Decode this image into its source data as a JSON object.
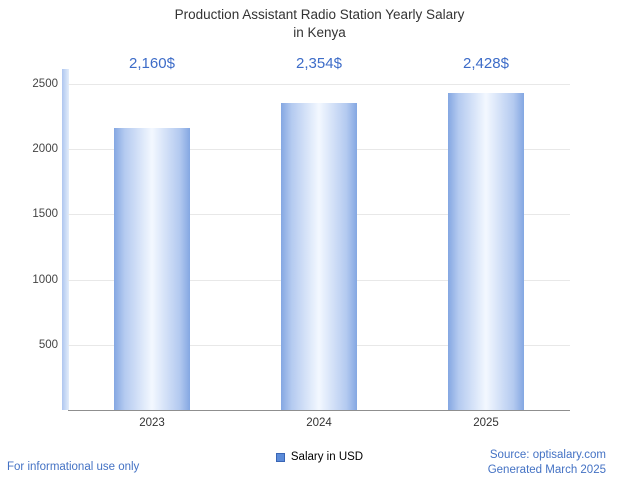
{
  "title": {
    "line1": "Production Assistant Radio Station Yearly Salary",
    "line2": "in Kenya"
  },
  "chart_data": {
    "type": "bar",
    "title": "Production Assistant Radio Station Yearly Salary in Kenya",
    "categories": [
      "2023",
      "2024",
      "2025"
    ],
    "values": [
      2160,
      2354,
      2428
    ],
    "value_labels": [
      "2,160$",
      "2,354$",
      "2,428$"
    ],
    "series": [
      {
        "name": "Salary in USD",
        "values": [
          2160,
          2354,
          2428
        ]
      }
    ],
    "xlabel": "",
    "ylabel": "",
    "ylim": [
      0,
      2500
    ],
    "yticks": [
      500,
      1000,
      1500,
      2000,
      2500
    ],
    "grid": true,
    "legend_position": "bottom",
    "colors": {
      "bar_edge": "#84a7e2",
      "bar_center": "#f3f8ff",
      "value_label": "#3d6cc8",
      "footer_link": "#4472c4",
      "axis_line": "#8f8f8f",
      "gridline": "#e8e8e8"
    }
  },
  "legend": {
    "label": "Salary in USD"
  },
  "footer": {
    "left": "For informational use only",
    "source": "Source: optisalary.com",
    "generated": "Generated March 2025"
  }
}
